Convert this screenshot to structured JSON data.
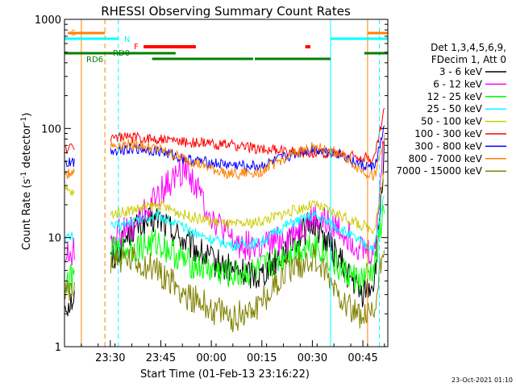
{
  "chart_data": {
    "type": "line",
    "title": "RHESSI Observing Summary Count Rates",
    "xlabel": "Start Time (01-Feb-13 23:16:22)",
    "ylabel_main": "Count Rate (s",
    "ylabel_sup1": "-1",
    "ylabel_mid": " detector",
    "ylabel_sup2": "-1",
    "ylabel_end": ")",
    "yscale": "log",
    "ylim": [
      1,
      1000
    ],
    "y_ticks": [
      {
        "value": 1,
        "label": "1"
      },
      {
        "value": 10,
        "label": "10"
      },
      {
        "value": 100,
        "label": "100"
      },
      {
        "value": 1000,
        "label": "1000"
      }
    ],
    "xlim_minutes": [
      0,
      96
    ],
    "x_ticks": [
      {
        "minute": 13.6,
        "label": "23:30"
      },
      {
        "minute": 28.6,
        "label": "23:45"
      },
      {
        "minute": 43.6,
        "label": "00:00"
      },
      {
        "minute": 58.6,
        "label": "00:15"
      },
      {
        "minute": 73.6,
        "label": "00:30"
      },
      {
        "minute": 88.6,
        "label": "00:45"
      }
    ],
    "legend_header": [
      "Det 1,3,4,5,6,9,",
      "FDecim 1, Att 0"
    ],
    "footer_date": "23-Oct-2021 01:10",
    "series": [
      {
        "name": "3 - 6 keV",
        "color": "#000000",
        "values": [
          2.5,
          5.0,
          12.0,
          15.0,
          9.0,
          6.0,
          5.0,
          4.5,
          8.0,
          14.0,
          6.0,
          3.0,
          4.0,
          60.0
        ]
      },
      {
        "name": "6 - 12 keV",
        "color": "#ff00ff",
        "values": [
          7.0,
          10.0,
          12.0,
          25.0,
          45.0,
          15.0,
          9.0,
          8.0,
          10.0,
          15.0,
          12.0,
          8.0,
          7.0,
          90.0
        ]
      },
      {
        "name": "12 - 25 keV",
        "color": "#00ff00",
        "values": [
          4.0,
          7.0,
          8.0,
          9.0,
          6.0,
          5.0,
          4.5,
          5.0,
          7.0,
          9.0,
          5.0,
          4.0,
          5.0,
          20.0
        ]
      },
      {
        "name": "25 - 50 keV",
        "color": "#00ffff",
        "values": [
          10.0,
          12.0,
          14.0,
          16.0,
          12.0,
          9.5,
          8.5,
          9.0,
          13.0,
          16.0,
          12.0,
          9.0,
          8.0,
          25.0
        ]
      },
      {
        "name": "50 - 100 keV",
        "color": "#cccc00",
        "values": [
          27.0,
          16.0,
          18.0,
          20.0,
          16.0,
          14.0,
          13.0,
          14.0,
          17.0,
          20.0,
          16.0,
          13.0,
          12.0,
          40.0
        ]
      },
      {
        "name": "100 - 300 keV",
        "color": "#ff0000",
        "values": [
          65.0,
          85.0,
          82.0,
          80.0,
          75.0,
          72.0,
          70.0,
          65.0,
          62.0,
          60.0,
          58.0,
          55.0,
          52.0,
          150.0
        ]
      },
      {
        "name": "300 - 800 keV",
        "color": "#0000ff",
        "values": [
          48.0,
          62.0,
          66.0,
          62.0,
          52.0,
          48.0,
          46.0,
          45.0,
          55.0,
          65.0,
          58.0,
          46.0,
          44.0,
          100.0
        ]
      },
      {
        "name": "800 - 7000 keV",
        "color": "#ff8000",
        "values": [
          38.0,
          68.0,
          72.0,
          64.0,
          52.0,
          42.0,
          38.0,
          40.0,
          55.0,
          68.0,
          58.0,
          42.0,
          36.0,
          80.0
        ]
      },
      {
        "name": "7000 - 15000 keV",
        "color": "#808000",
        "values": [
          3.0,
          6.5,
          6.0,
          5.0,
          3.0,
          2.2,
          1.8,
          2.5,
          5.0,
          6.5,
          3.0,
          1.8,
          2.0,
          10.0
        ]
      }
    ],
    "series_x_minutes": [
      1,
      12,
      20,
      28,
      36,
      44,
      50,
      58,
      66,
      74,
      82,
      88,
      92,
      95
    ],
    "flag_rows": [
      {
        "label": "S",
        "color": "#ff8000"
      },
      {
        "label": "N",
        "color": "#00ffff"
      },
      {
        "label": "F",
        "color": "#ff0000"
      },
      {
        "label": "RD0",
        "color": "#008000"
      },
      {
        "label": "RD6",
        "color": "#008000"
      }
    ],
    "vertical_markers": [
      {
        "minute": 5.0,
        "color": "#ff8000",
        "style": "solid"
      },
      {
        "minute": 12.0,
        "color": "#ff8000",
        "style": "dashed"
      },
      {
        "minute": 16.0,
        "color": "#00ffff",
        "style": "dashed"
      },
      {
        "minute": 79.0,
        "color": "#00ffff",
        "style": "solid"
      },
      {
        "minute": 90.0,
        "color": "#ff8000",
        "style": "solid"
      },
      {
        "minute": 93.5,
        "color": "#00ffff",
        "style": "dashed"
      }
    ]
  }
}
